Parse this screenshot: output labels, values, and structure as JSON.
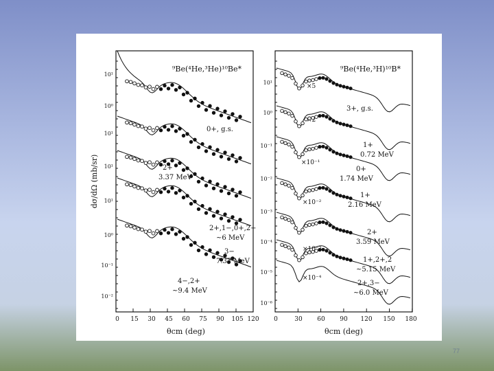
{
  "page_number": "77",
  "left_panel": {
    "reaction": "⁹Be(⁴He,³He)¹⁰Be*",
    "ylabel": "dσ/dΩ (mb/sr)",
    "xlabel": "θcm (deg)",
    "xticks": [
      "0",
      "15",
      "30",
      "45",
      "60",
      "75",
      "90",
      "105",
      "120"
    ],
    "yticks": [
      "10¹",
      "10⁰",
      "10¹",
      "10¹",
      "10¹",
      "10⁰",
      "10⁻¹",
      "10⁻²"
    ],
    "states": [
      {
        "label": "0+, g.s."
      },
      {
        "label": "2+",
        "energy": "3.37 MeV"
      },
      {
        "label": "2+,1−,0+,2−",
        "energy": "~6 MeV"
      },
      {
        "label": "3−",
        "energy": "7.37 MeV"
      },
      {
        "label": "4−,2+",
        "energy": "~9.4 MeV"
      }
    ]
  },
  "right_panel": {
    "reaction": "⁹Be(⁴He,³H)¹⁰B*",
    "xlabel": "θcm (deg)",
    "xticks": [
      "0",
      "30",
      "60",
      "90",
      "120",
      "150",
      "180"
    ],
    "yticks": [
      "10¹",
      "10⁰",
      "10⁻¹",
      "10⁻²",
      "10⁻³",
      "10⁻⁴",
      "10⁻⁵",
      "10⁻⁶"
    ],
    "states": [
      {
        "label": "3+, g.s.",
        "scale": "×5"
      },
      {
        "label": "1+",
        "energy": "0.72 MeV",
        "scale": "×2"
      },
      {
        "label": "0+",
        "energy": "1.74 MeV",
        "scale": "×10⁻¹"
      },
      {
        "label": "1+",
        "energy": "2.16 MeV",
        "scale": "×10⁻²"
      },
      {
        "label": "2+",
        "energy": "3.59 MeV",
        "scale": "×10⁻³"
      },
      {
        "label": "1+,2+,2",
        "energy": "~5.15 MeV",
        "scale": "×10⁻⁴"
      },
      {
        "label": "2+,3−",
        "energy": "~6.0 MeV"
      }
    ]
  }
}
